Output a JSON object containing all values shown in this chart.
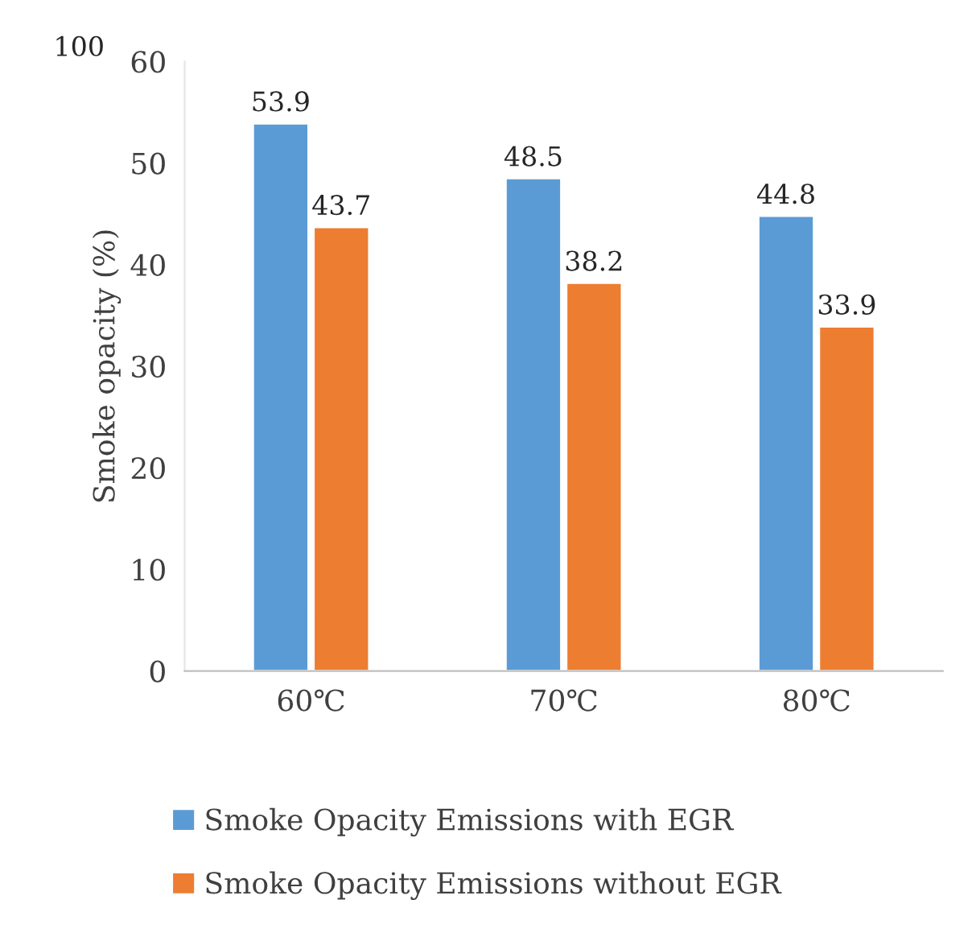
{
  "chart_data": {
    "type": "bar",
    "ylabel": "Smoke opacity (%)",
    "categories": [
      "60℃",
      "70℃",
      "80℃"
    ],
    "series": [
      {
        "name": "Smoke Opacity Emissions with EGR",
        "color": "#5b9bd5",
        "values": [
          53.9,
          48.5,
          44.8
        ]
      },
      {
        "name": "Smoke Opacity Emissions without EGR",
        "color": "#ed7d31",
        "values": [
          43.7,
          38.2,
          33.9
        ]
      }
    ],
    "ylim": [
      0,
      60
    ],
    "yticks": [
      0,
      10,
      20,
      30,
      40,
      50,
      60
    ],
    "data_labels": true,
    "grid": false,
    "legend": "bottom",
    "annotations": [
      "100"
    ]
  }
}
